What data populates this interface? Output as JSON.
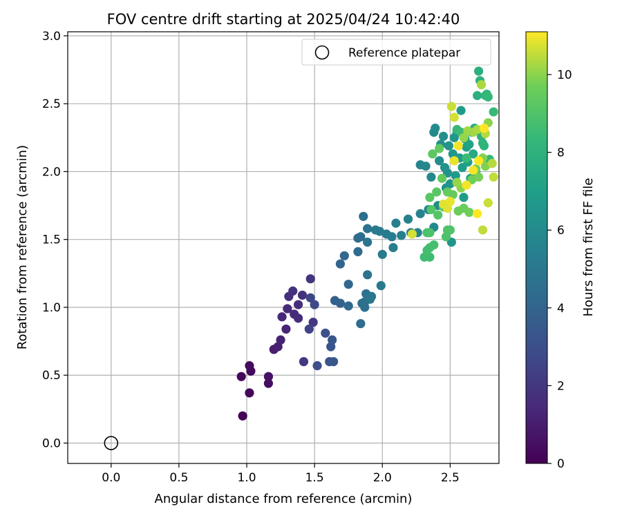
{
  "chart_data": {
    "type": "scatter",
    "title": "FOV centre drift starting at 2025/04/24 10:42:40",
    "xlabel": "Angular distance from reference (arcmin)",
    "ylabel": "Rotation from reference (arcmin)",
    "xlim": [
      -0.32,
      2.86
    ],
    "ylim": [
      -0.15,
      3.03
    ],
    "xticks": [
      "0.0",
      "0.5",
      "1.0",
      "1.5",
      "2.0",
      "2.5"
    ],
    "yticks": [
      "0.0",
      "0.5",
      "1.0",
      "1.5",
      "2.0",
      "2.5",
      "3.0"
    ],
    "grid": true,
    "legend": {
      "position": "top-right",
      "label": "Reference platepar"
    },
    "reference_point": {
      "x": 0.0,
      "y": 0.0
    },
    "colorbar": {
      "label": "Hours from first FF file",
      "range": [
        0,
        11.1
      ],
      "ticks": [
        "0",
        "2",
        "4",
        "6",
        "8",
        "10"
      ],
      "colormap": "viridis"
    },
    "points": [
      [
        0.97,
        0.2,
        0.1
      ],
      [
        1.02,
        0.37,
        0.2
      ],
      [
        0.96,
        0.49,
        0.3
      ],
      [
        1.03,
        0.53,
        0.3
      ],
      [
        1.02,
        0.57,
        0.4
      ],
      [
        1.16,
        0.44,
        0.5
      ],
      [
        1.16,
        0.49,
        0.6
      ],
      [
        1.2,
        0.69,
        1.0
      ],
      [
        1.23,
        0.71,
        1.1
      ],
      [
        1.25,
        0.76,
        1.2
      ],
      [
        1.29,
        0.84,
        1.3
      ],
      [
        1.26,
        0.93,
        1.4
      ],
      [
        1.3,
        0.99,
        1.5
      ],
      [
        1.35,
        0.95,
        1.5
      ],
      [
        1.38,
        0.92,
        1.6
      ],
      [
        1.38,
        1.02,
        1.6
      ],
      [
        1.31,
        1.08,
        1.7
      ],
      [
        1.34,
        1.12,
        1.8
      ],
      [
        1.41,
        1.09,
        1.8
      ],
      [
        1.47,
        1.21,
        1.9
      ],
      [
        1.49,
        0.89,
        2.0
      ],
      [
        1.42,
        0.6,
        2.1
      ],
      [
        1.46,
        0.84,
        2.5
      ],
      [
        1.47,
        1.07,
        2.6
      ],
      [
        1.5,
        1.02,
        2.7
      ],
      [
        1.52,
        0.57,
        3.0
      ],
      [
        1.58,
        0.81,
        3.1
      ],
      [
        1.61,
        0.6,
        3.2
      ],
      [
        1.62,
        0.71,
        3.3
      ],
      [
        1.63,
        0.76,
        3.3
      ],
      [
        1.64,
        0.6,
        3.4
      ],
      [
        1.65,
        1.05,
        3.8
      ],
      [
        1.69,
        1.03,
        3.9
      ],
      [
        1.69,
        1.32,
        4.0
      ],
      [
        1.72,
        1.38,
        4.1
      ],
      [
        1.75,
        1.17,
        4.1
      ],
      [
        1.75,
        1.01,
        4.2
      ],
      [
        1.82,
        1.41,
        4.3
      ],
      [
        1.82,
        1.51,
        4.3
      ],
      [
        1.84,
        1.52,
        4.4
      ],
      [
        1.84,
        0.88,
        4.4
      ],
      [
        1.85,
        1.03,
        4.5
      ],
      [
        1.86,
        1.67,
        4.5
      ],
      [
        1.87,
        1.0,
        4.6
      ],
      [
        1.87,
        1.04,
        4.6
      ],
      [
        1.88,
        1.1,
        4.7
      ],
      [
        1.89,
        1.24,
        4.7
      ],
      [
        1.89,
        1.48,
        4.8
      ],
      [
        1.89,
        1.58,
        4.8
      ],
      [
        1.91,
        1.06,
        4.9
      ],
      [
        1.92,
        1.08,
        5.0
      ],
      [
        1.95,
        1.57,
        5.0
      ],
      [
        1.98,
        1.56,
        5.1
      ],
      [
        1.99,
        1.16,
        5.1
      ],
      [
        2.0,
        1.39,
        5.2
      ],
      [
        2.03,
        1.54,
        5.2
      ],
      [
        2.07,
        1.52,
        5.3
      ],
      [
        2.08,
        1.44,
        5.3
      ],
      [
        2.1,
        1.62,
        5.4
      ],
      [
        2.14,
        1.53,
        5.4
      ],
      [
        2.19,
        1.65,
        5.5
      ],
      [
        2.21,
        1.55,
        5.5
      ],
      [
        2.26,
        1.55,
        5.6
      ],
      [
        2.28,
        1.69,
        5.6
      ],
      [
        2.28,
        2.05,
        5.7
      ],
      [
        2.32,
        2.04,
        5.8
      ],
      [
        2.34,
        1.72,
        5.8
      ],
      [
        2.36,
        1.96,
        5.9
      ],
      [
        2.38,
        1.59,
        5.9
      ],
      [
        2.38,
        2.29,
        6.0
      ],
      [
        2.39,
        2.32,
        6.0
      ],
      [
        2.41,
        1.75,
        6.1
      ],
      [
        2.42,
        2.08,
        6.1
      ],
      [
        2.43,
        2.2,
        6.2
      ],
      [
        2.45,
        2.26,
        6.2
      ],
      [
        2.46,
        2.03,
        6.3
      ],
      [
        2.47,
        1.88,
        6.3
      ],
      [
        2.48,
        1.99,
        6.4
      ],
      [
        2.49,
        2.19,
        6.4
      ],
      [
        2.5,
        1.91,
        6.5
      ],
      [
        2.51,
        1.48,
        6.5
      ],
      [
        2.52,
        2.13,
        6.6
      ],
      [
        2.53,
        2.25,
        6.6
      ],
      [
        2.54,
        1.97,
        6.7
      ],
      [
        2.55,
        2.29,
        6.7
      ],
      [
        2.57,
        2.1,
        6.8
      ],
      [
        2.58,
        2.45,
        6.8
      ],
      [
        2.59,
        2.03,
        6.9
      ],
      [
        2.6,
        1.81,
        6.9
      ],
      [
        2.61,
        2.24,
        7.0
      ],
      [
        2.62,
        2.18,
        7.0
      ],
      [
        2.63,
        2.07,
        7.1
      ],
      [
        2.64,
        2.2,
        7.2
      ],
      [
        2.65,
        1.95,
        7.3
      ],
      [
        2.66,
        2.29,
        7.4
      ],
      [
        2.67,
        2.13,
        7.5
      ],
      [
        2.68,
        2.32,
        7.6
      ],
      [
        2.69,
        2.0,
        7.7
      ],
      [
        2.7,
        2.56,
        7.8
      ],
      [
        2.71,
        2.74,
        7.9
      ],
      [
        2.72,
        2.67,
        8.0
      ],
      [
        2.73,
        2.26,
        8.0
      ],
      [
        2.74,
        2.21,
        8.1
      ],
      [
        2.75,
        2.19,
        8.1
      ],
      [
        2.76,
        2.56,
        8.2
      ],
      [
        2.77,
        2.57,
        8.2
      ],
      [
        2.78,
        2.55,
        8.3
      ],
      [
        2.79,
        2.09,
        8.3
      ],
      [
        2.82,
        2.44,
        8.4
      ],
      [
        2.55,
        2.31,
        8.4
      ],
      [
        2.58,
        2.29,
        8.5
      ],
      [
        2.62,
        2.1,
        8.5
      ],
      [
        2.31,
        1.37,
        8.6
      ],
      [
        2.35,
        1.37,
        8.6
      ],
      [
        2.33,
        1.42,
        8.7
      ],
      [
        2.35,
        1.44,
        8.7
      ],
      [
        2.38,
        1.46,
        8.8
      ],
      [
        2.33,
        1.55,
        8.8
      ],
      [
        2.35,
        1.55,
        8.9
      ],
      [
        2.47,
        1.52,
        8.9
      ],
      [
        2.48,
        1.57,
        9.0
      ],
      [
        2.5,
        1.57,
        9.0
      ],
      [
        2.36,
        1.72,
        9.1
      ],
      [
        2.41,
        1.68,
        9.1
      ],
      [
        2.35,
        1.81,
        9.2
      ],
      [
        2.4,
        1.85,
        9.2
      ],
      [
        2.45,
        1.74,
        9.3
      ],
      [
        2.37,
        2.13,
        9.3
      ],
      [
        2.42,
        2.17,
        9.4
      ],
      [
        2.44,
        1.95,
        9.4
      ],
      [
        2.48,
        1.85,
        9.5
      ],
      [
        2.52,
        1.83,
        9.5
      ],
      [
        2.56,
        1.71,
        9.6
      ],
      [
        2.6,
        1.73,
        9.6
      ],
      [
        2.64,
        1.7,
        9.7
      ],
      [
        2.66,
        1.94,
        9.7
      ],
      [
        2.69,
        2.02,
        9.8
      ],
      [
        2.71,
        1.96,
        9.8
      ],
      [
        2.74,
        2.1,
        9.9
      ],
      [
        2.76,
        2.04,
        9.9
      ],
      [
        2.78,
        2.36,
        10.0
      ],
      [
        2.58,
        1.88,
        10.0
      ],
      [
        2.55,
        1.92,
        10.1
      ],
      [
        2.6,
        2.25,
        10.1
      ],
      [
        2.63,
        2.3,
        10.2
      ],
      [
        2.67,
        2.29,
        10.2
      ],
      [
        2.7,
        2.31,
        10.3
      ],
      [
        2.73,
        2.64,
        10.3
      ],
      [
        2.76,
        2.28,
        10.4
      ],
      [
        2.81,
        2.06,
        10.4
      ],
      [
        2.82,
        1.96,
        10.5
      ],
      [
        2.74,
        1.57,
        10.5
      ],
      [
        2.78,
        1.77,
        10.6
      ],
      [
        2.51,
        2.48,
        10.6
      ],
      [
        2.53,
        2.4,
        10.7
      ],
      [
        2.22,
        1.54,
        10.7
      ],
      [
        2.45,
        1.76,
        10.8
      ],
      [
        2.48,
        1.73,
        10.8
      ],
      [
        2.5,
        1.78,
        10.9
      ],
      [
        2.53,
        2.08,
        10.9
      ],
      [
        2.56,
        2.19,
        11.0
      ],
      [
        2.62,
        1.9,
        11.0
      ],
      [
        2.67,
        2.01,
        11.0
      ],
      [
        2.7,
        1.69,
        11.1
      ],
      [
        2.71,
        2.08,
        11.1
      ],
      [
        2.75,
        2.32,
        11.1
      ]
    ]
  }
}
